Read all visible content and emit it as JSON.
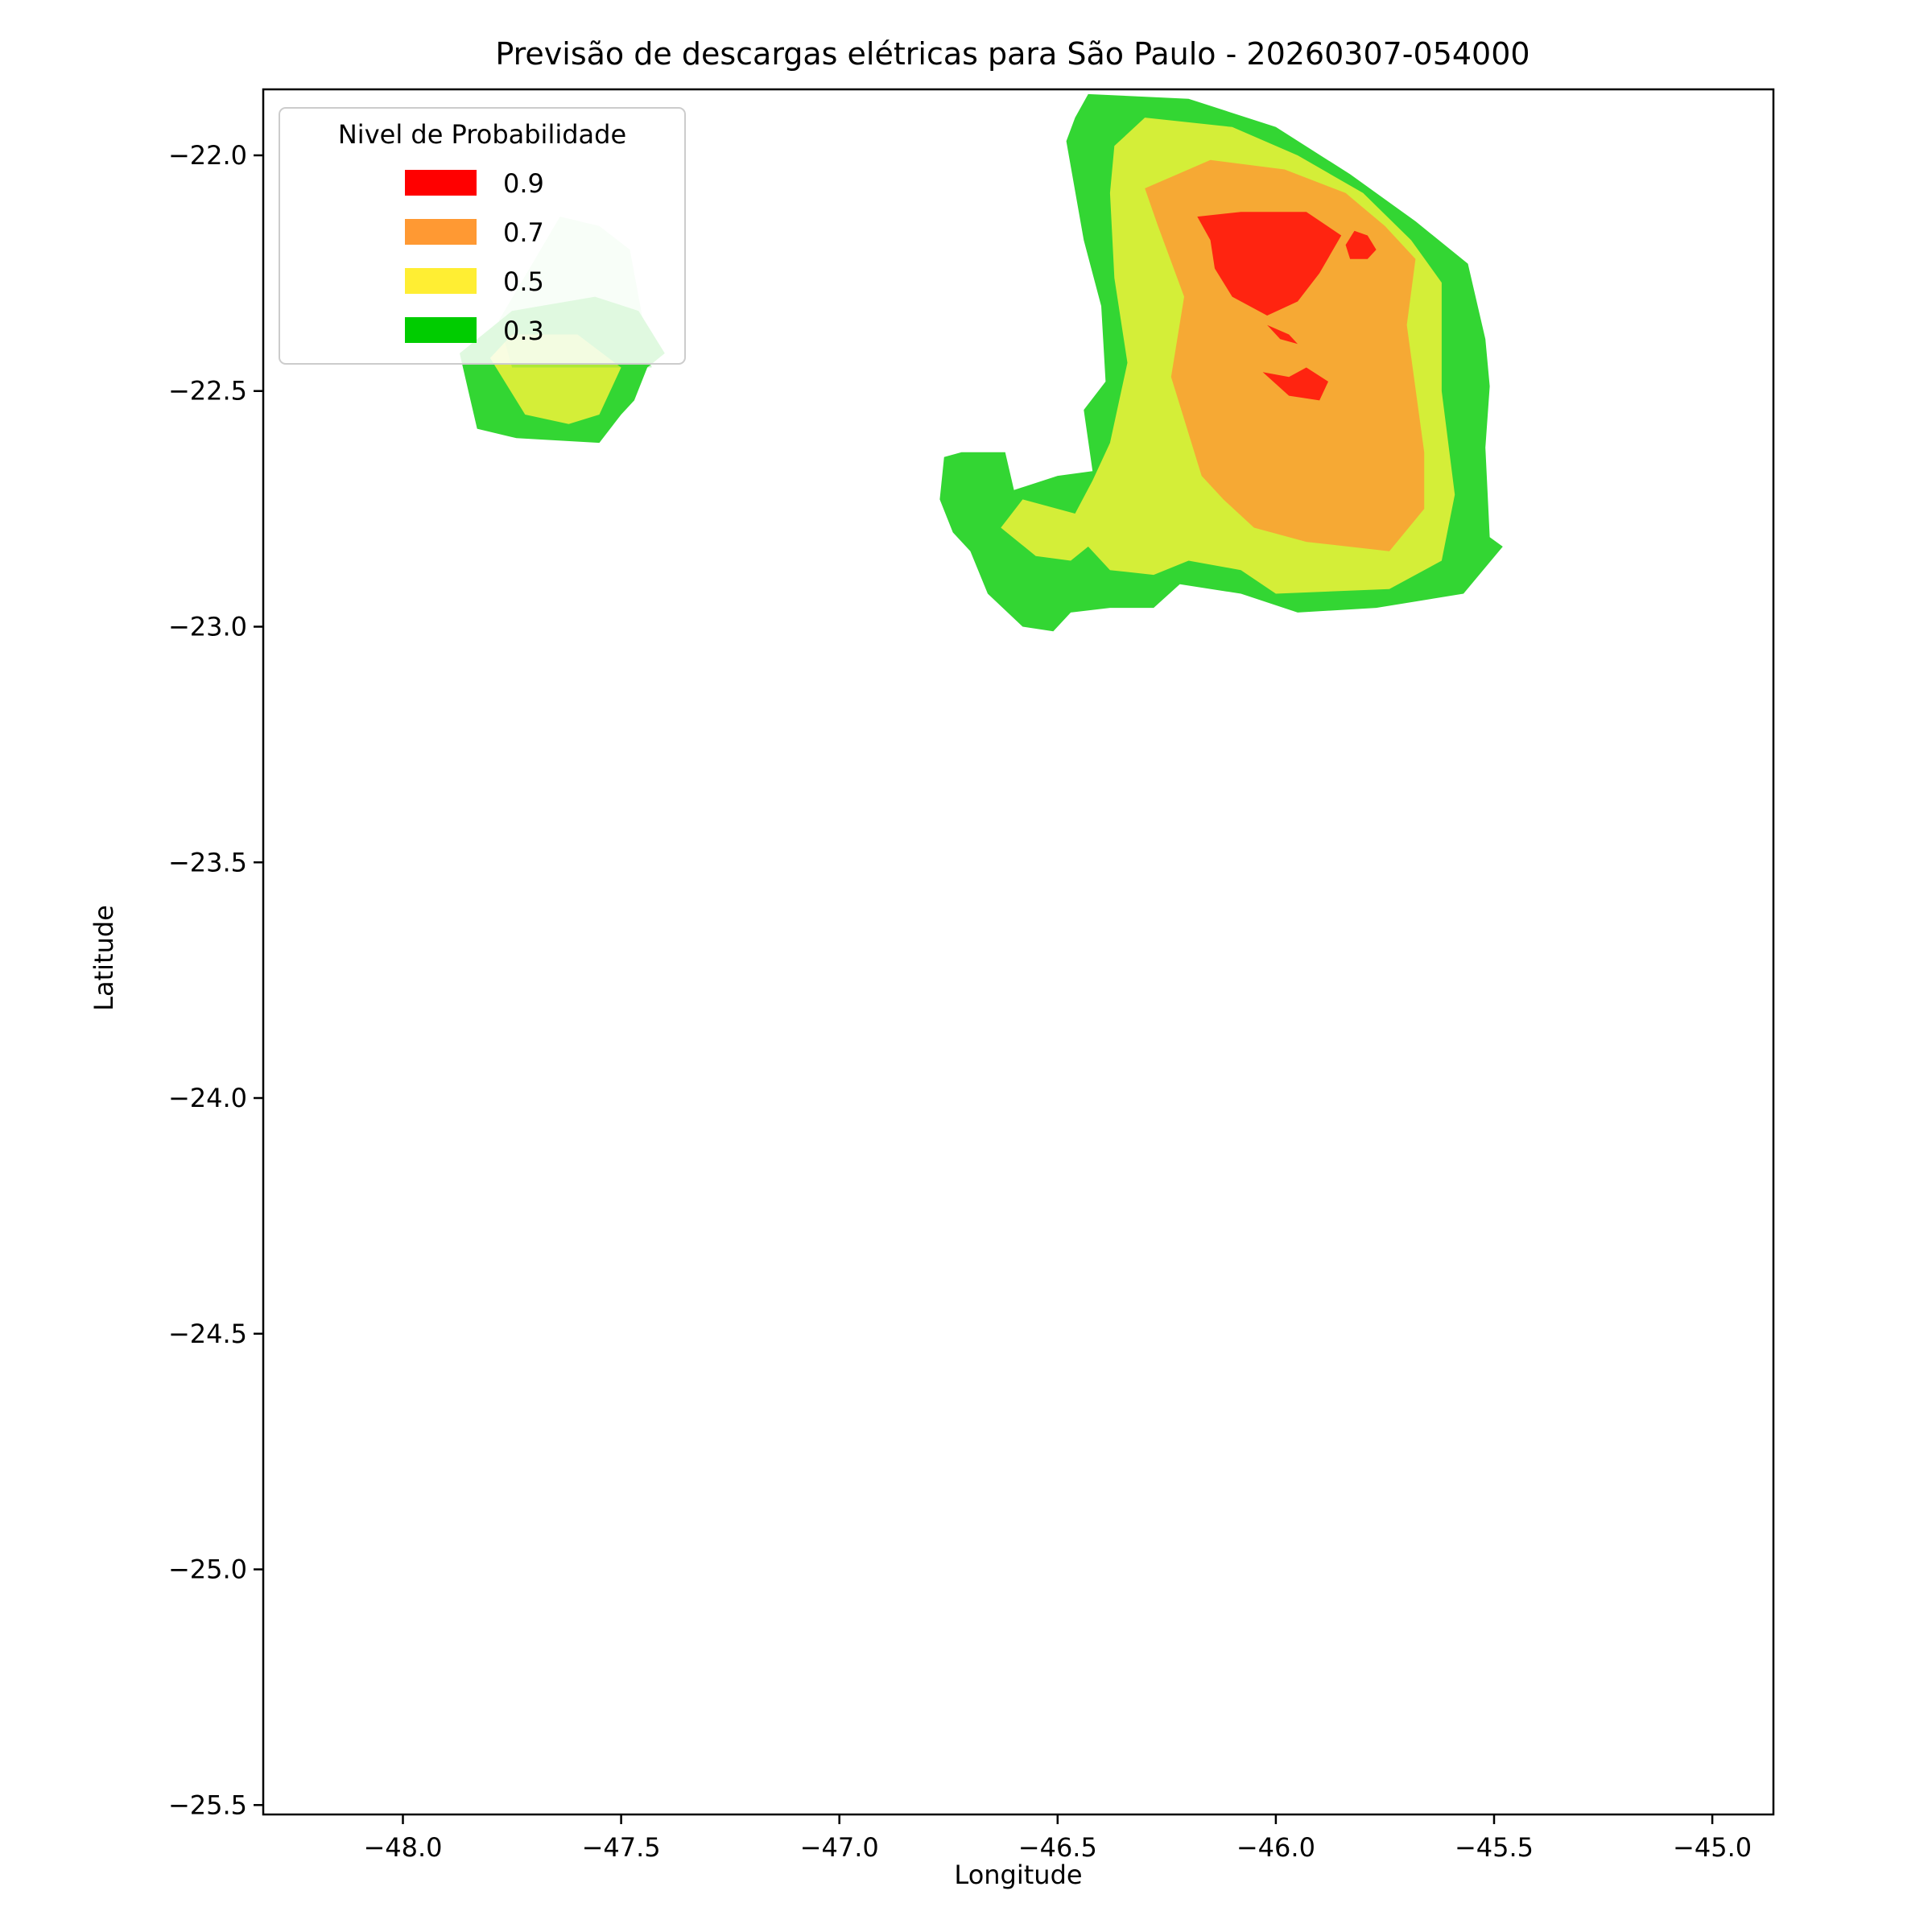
{
  "chart_data": {
    "type": "contour-map",
    "title": "Previsão de descargas elétricas para São Paulo - 20260307-054000",
    "xlabel": "Longitude",
    "ylabel": "Latitude",
    "xlim": [
      -48.32,
      -44.86
    ],
    "ylim": [
      -25.52,
      -21.86
    ],
    "xticks": [
      -48.0,
      -47.5,
      -47.0,
      -46.5,
      -46.0,
      -45.5,
      -45.0
    ],
    "yticks": [
      -22.0,
      -22.5,
      -23.0,
      -23.5,
      -24.0,
      -24.5,
      -25.0,
      -25.5
    ],
    "xtick_labels": [
      "−48.0",
      "−47.5",
      "−47.0",
      "−46.5",
      "−46.0",
      "−45.5",
      "−45.0"
    ],
    "ytick_labels": [
      "−22.0",
      "−22.5",
      "−23.0",
      "−23.5",
      "−24.0",
      "−24.5",
      "−25.0",
      "−25.5"
    ],
    "legend": {
      "title": "Nivel de Probabilidade",
      "placement": "upper-left",
      "entries": [
        {
          "label": "0.9",
          "color": "#ff0000"
        },
        {
          "label": "0.7",
          "color": "#ff9933"
        },
        {
          "label": "0.5",
          "color": "#ffee33"
        },
        {
          "label": "0.3",
          "color": "#00cc00"
        }
      ]
    },
    "fill_colors": {
      "0.3": "#33d633",
      "0.5": "#d4ee38",
      "0.7": "#f6a934",
      "0.9": "#ff2410"
    },
    "regions": [
      {
        "name": "east-cell-0.3",
        "level": "0.3",
        "coords": [
          [
            -46.43,
            -21.87
          ],
          [
            -46.2,
            -21.88
          ],
          [
            -46.0,
            -21.94
          ],
          [
            -45.83,
            -22.04
          ],
          [
            -45.68,
            -22.14
          ],
          [
            -45.56,
            -22.23
          ],
          [
            -45.52,
            -22.39
          ],
          [
            -45.51,
            -22.49
          ],
          [
            -45.52,
            -22.62
          ],
          [
            -45.51,
            -22.81
          ],
          [
            -45.48,
            -22.83
          ],
          [
            -45.57,
            -22.93
          ],
          [
            -45.77,
            -22.96
          ],
          [
            -45.95,
            -22.97
          ],
          [
            -46.08,
            -22.93
          ],
          [
            -46.22,
            -22.91
          ],
          [
            -46.28,
            -22.96
          ],
          [
            -46.38,
            -22.96
          ],
          [
            -46.47,
            -22.97
          ],
          [
            -46.51,
            -23.01
          ],
          [
            -46.58,
            -23.0
          ],
          [
            -46.66,
            -22.93
          ],
          [
            -46.7,
            -22.84
          ],
          [
            -46.74,
            -22.8
          ],
          [
            -46.77,
            -22.73
          ],
          [
            -46.76,
            -22.64
          ],
          [
            -46.72,
            -22.63
          ],
          [
            -46.62,
            -22.63
          ],
          [
            -46.6,
            -22.71
          ],
          [
            -46.5,
            -22.68
          ],
          [
            -46.42,
            -22.67
          ],
          [
            -46.44,
            -22.54
          ],
          [
            -46.39,
            -22.48
          ],
          [
            -46.4,
            -22.32
          ],
          [
            -46.44,
            -22.18
          ],
          [
            -46.48,
            -21.97
          ],
          [
            -46.46,
            -21.92
          ]
        ]
      },
      {
        "name": "east-cell-0.5",
        "level": "0.5",
        "coords": [
          [
            -46.3,
            -21.92
          ],
          [
            -46.1,
            -21.94
          ],
          [
            -45.95,
            -22.0
          ],
          [
            -45.8,
            -22.08
          ],
          [
            -45.69,
            -22.18
          ],
          [
            -45.62,
            -22.27
          ],
          [
            -45.62,
            -22.5
          ],
          [
            -45.59,
            -22.72
          ],
          [
            -45.62,
            -22.86
          ],
          [
            -45.74,
            -22.92
          ],
          [
            -46.0,
            -22.93
          ],
          [
            -46.08,
            -22.88
          ],
          [
            -46.2,
            -22.86
          ],
          [
            -46.28,
            -22.89
          ],
          [
            -46.38,
            -22.88
          ],
          [
            -46.43,
            -22.83
          ],
          [
            -46.47,
            -22.86
          ],
          [
            -46.55,
            -22.85
          ],
          [
            -46.63,
            -22.79
          ],
          [
            -46.58,
            -22.73
          ],
          [
            -46.46,
            -22.76
          ],
          [
            -46.42,
            -22.69
          ],
          [
            -46.38,
            -22.61
          ],
          [
            -46.34,
            -22.44
          ],
          [
            -46.37,
            -22.26
          ],
          [
            -46.38,
            -22.08
          ],
          [
            -46.37,
            -21.98
          ]
        ]
      },
      {
        "name": "east-cell-0.7",
        "level": "0.7",
        "coords": [
          [
            -46.3,
            -22.07
          ],
          [
            -46.15,
            -22.01
          ],
          [
            -45.98,
            -22.03
          ],
          [
            -45.84,
            -22.08
          ],
          [
            -45.75,
            -22.15
          ],
          [
            -45.68,
            -22.22
          ],
          [
            -45.7,
            -22.36
          ],
          [
            -45.66,
            -22.63
          ],
          [
            -45.66,
            -22.75
          ],
          [
            -45.74,
            -22.84
          ],
          [
            -45.93,
            -22.82
          ],
          [
            -46.05,
            -22.79
          ],
          [
            -46.12,
            -22.73
          ],
          [
            -46.17,
            -22.68
          ],
          [
            -46.24,
            -22.47
          ],
          [
            -46.21,
            -22.3
          ],
          [
            -46.27,
            -22.15
          ]
        ]
      },
      {
        "name": "east-cell-0.9-main",
        "level": "0.9",
        "coords": [
          [
            -46.18,
            -22.13
          ],
          [
            -46.08,
            -22.12
          ],
          [
            -45.93,
            -22.12
          ],
          [
            -45.85,
            -22.17
          ],
          [
            -45.9,
            -22.25
          ],
          [
            -45.95,
            -22.31
          ],
          [
            -46.02,
            -22.34
          ],
          [
            -46.1,
            -22.3
          ],
          [
            -46.14,
            -22.24
          ],
          [
            -46.15,
            -22.18
          ]
        ]
      },
      {
        "name": "east-cell-0.9-peak",
        "level": "0.9",
        "coords": [
          [
            -45.79,
            -22.17
          ],
          [
            -45.77,
            -22.2
          ],
          [
            -45.79,
            -22.22
          ],
          [
            -45.83,
            -22.22
          ],
          [
            -45.84,
            -22.19
          ],
          [
            -45.82,
            -22.16
          ]
        ]
      },
      {
        "name": "east-cell-0.9-small-a",
        "level": "0.9",
        "coords": [
          [
            -46.02,
            -22.36
          ],
          [
            -45.97,
            -22.38
          ],
          [
            -45.95,
            -22.4
          ],
          [
            -45.99,
            -22.39
          ]
        ]
      },
      {
        "name": "east-cell-0.9-small-b",
        "level": "0.9",
        "coords": [
          [
            -46.03,
            -22.46
          ],
          [
            -45.97,
            -22.47
          ],
          [
            -45.93,
            -22.45
          ],
          [
            -45.88,
            -22.48
          ],
          [
            -45.9,
            -22.52
          ],
          [
            -45.97,
            -22.51
          ]
        ]
      },
      {
        "name": "west-cell-0.3",
        "level": "0.3",
        "coords": [
          [
            -47.87,
            -22.42
          ],
          [
            -47.85,
            -22.5
          ],
          [
            -47.83,
            -22.58
          ],
          [
            -47.74,
            -22.6
          ],
          [
            -47.55,
            -22.61
          ],
          [
            -47.5,
            -22.55
          ],
          [
            -47.47,
            -22.52
          ],
          [
            -47.44,
            -22.45
          ],
          [
            -47.4,
            -22.42
          ],
          [
            -47.46,
            -22.33
          ],
          [
            -47.56,
            -22.3
          ],
          [
            -47.75,
            -22.33
          ]
        ]
      },
      {
        "name": "west-cell-0.5",
        "level": "0.5",
        "coords": [
          [
            -47.8,
            -22.43
          ],
          [
            -47.72,
            -22.55
          ],
          [
            -47.62,
            -22.57
          ],
          [
            -47.55,
            -22.55
          ],
          [
            -47.5,
            -22.45
          ],
          [
            -47.6,
            -22.38
          ],
          [
            -47.75,
            -22.38
          ]
        ]
      },
      {
        "name": "west-cell-faded",
        "level": "0.3",
        "opacity": 0.25,
        "coords": [
          [
            -47.78,
            -22.35
          ],
          [
            -47.64,
            -22.13
          ],
          [
            -47.55,
            -22.15
          ],
          [
            -47.48,
            -22.2
          ],
          [
            -47.45,
            -22.35
          ],
          [
            -47.43,
            -22.45
          ],
          [
            -47.55,
            -22.45
          ],
          [
            -47.75,
            -22.45
          ]
        ]
      }
    ]
  }
}
